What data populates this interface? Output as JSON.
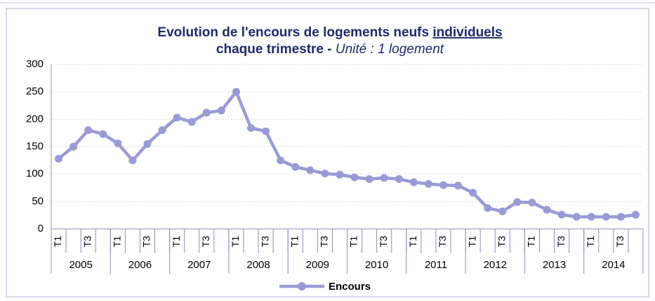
{
  "chart_data": {
    "type": "line",
    "title": "Evolution de l'encours de logements neufs ",
    "title_underlined": "individuels",
    "subtitle": "chaque trimestre - ",
    "subtitle_italic": "Unité : 1 logement",
    "categories": [
      "T1",
      null,
      "T3",
      null,
      "T1",
      null,
      "T3",
      null,
      "T1",
      null,
      "T3",
      null,
      "T1",
      null,
      "T3",
      null,
      "T1",
      null,
      "T3",
      null,
      "T1",
      null,
      "T3",
      null,
      "T1",
      null,
      "T3",
      null,
      "T1",
      null,
      "T3",
      null,
      "T1",
      null,
      "T3",
      null,
      "T1",
      null,
      "T3",
      null
    ],
    "year_groups": [
      "2005",
      "2006",
      "2007",
      "2008",
      "2009",
      "2010",
      "2011",
      "2012",
      "2013",
      "2014"
    ],
    "series": [
      {
        "name": "Encours",
        "color": "#9a9ad8",
        "values": [
          128,
          150,
          180,
          173,
          156,
          125,
          155,
          180,
          203,
          195,
          212,
          216,
          250,
          184,
          178,
          125,
          113,
          107,
          101,
          99,
          94,
          91,
          93,
          91,
          85,
          82,
          80,
          79,
          66,
          38,
          32,
          49,
          48,
          35,
          26,
          22,
          22,
          22,
          22,
          26
        ]
      }
    ],
    "ylim": [
      0,
      300
    ],
    "yticks": [
      0,
      50,
      100,
      150,
      200,
      250,
      300
    ],
    "grid": true,
    "legend": "bottom"
  }
}
